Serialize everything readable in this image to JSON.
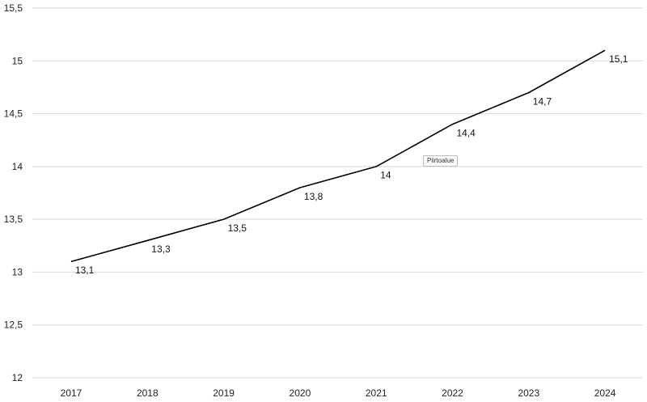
{
  "chart_data": {
    "type": "line",
    "categories": [
      "2017",
      "2018",
      "2019",
      "2020",
      "2021",
      "2022",
      "2023",
      "2024"
    ],
    "values": [
      13.1,
      13.3,
      13.5,
      13.8,
      14,
      14.4,
      14.7,
      15.1
    ],
    "value_labels": [
      "13,1",
      "13,3",
      "13,5",
      "13,8",
      "14",
      "14,4",
      "14,7",
      "15,1"
    ],
    "title": "",
    "xlabel": "",
    "ylabel": "",
    "ylim": [
      12,
      15.5
    ],
    "yticks": [
      12,
      12.5,
      13,
      13.5,
      14,
      14.5,
      15,
      15.5
    ],
    "ytick_labels": [
      "12",
      "12,5",
      "13",
      "13,5",
      "14",
      "14,5",
      "15",
      "15,5"
    ],
    "grid": true,
    "legend": "none",
    "line_color": "#000000",
    "grid_color": "#d9d9d9"
  },
  "tooltip": {
    "text": "Piirtoalue"
  }
}
